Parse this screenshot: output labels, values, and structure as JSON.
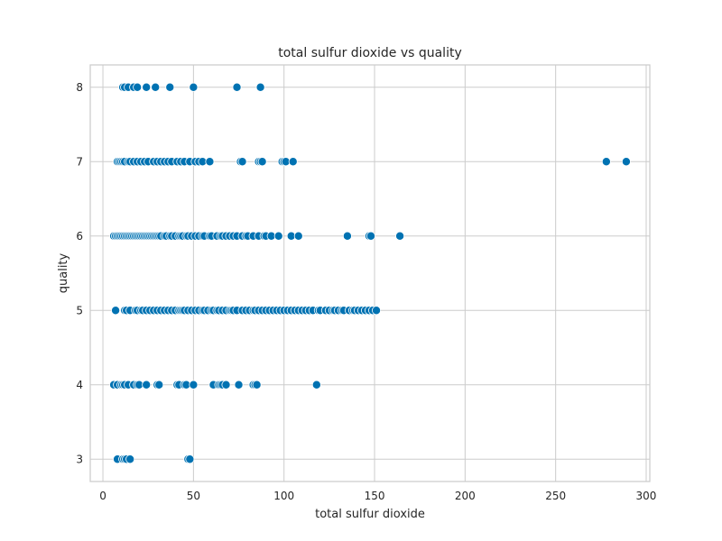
{
  "chart_data": {
    "type": "scatter",
    "title": "total sulfur dioxide vs quality",
    "xlabel": "total sulfur dioxide",
    "ylabel": "quality",
    "xlim": [
      -7,
      302
    ],
    "ylim": [
      2.7,
      8.3
    ],
    "xticks": [
      0,
      50,
      100,
      150,
      200,
      250,
      300
    ],
    "yticks": [
      3,
      4,
      5,
      6,
      7,
      8
    ],
    "grid": true,
    "color": "#0072b2",
    "series": [
      {
        "points": [
          {
            "x": 11,
            "y": 8
          },
          {
            "x": 12,
            "y": 8
          },
          {
            "x": 14,
            "y": 8
          },
          {
            "x": 17,
            "y": 8
          },
          {
            "x": 19,
            "y": 8
          },
          {
            "x": 24,
            "y": 8
          },
          {
            "x": 29,
            "y": 8
          },
          {
            "x": 37,
            "y": 8
          },
          {
            "x": 50,
            "y": 8
          },
          {
            "x": 74,
            "y": 8
          },
          {
            "x": 87,
            "y": 8
          },
          {
            "x": 8,
            "y": 7
          },
          {
            "x": 9,
            "y": 7
          },
          {
            "x": 10,
            "y": 7
          },
          {
            "x": 11,
            "y": 7
          },
          {
            "x": 12,
            "y": 7
          },
          {
            "x": 14,
            "y": 7
          },
          {
            "x": 15,
            "y": 7
          },
          {
            "x": 17,
            "y": 7
          },
          {
            "x": 19,
            "y": 7
          },
          {
            "x": 21,
            "y": 7
          },
          {
            "x": 23,
            "y": 7
          },
          {
            "x": 25,
            "y": 7
          },
          {
            "x": 28,
            "y": 7
          },
          {
            "x": 30,
            "y": 7
          },
          {
            "x": 32,
            "y": 7
          },
          {
            "x": 34,
            "y": 7
          },
          {
            "x": 36,
            "y": 7
          },
          {
            "x": 38,
            "y": 7
          },
          {
            "x": 41,
            "y": 7
          },
          {
            "x": 43,
            "y": 7
          },
          {
            "x": 45,
            "y": 7
          },
          {
            "x": 48,
            "y": 7
          },
          {
            "x": 51,
            "y": 7
          },
          {
            "x": 53,
            "y": 7
          },
          {
            "x": 55,
            "y": 7
          },
          {
            "x": 59,
            "y": 7
          },
          {
            "x": 76,
            "y": 7
          },
          {
            "x": 77,
            "y": 7
          },
          {
            "x": 86,
            "y": 7
          },
          {
            "x": 87,
            "y": 7
          },
          {
            "x": 88,
            "y": 7
          },
          {
            "x": 99,
            "y": 7
          },
          {
            "x": 100,
            "y": 7
          },
          {
            "x": 101,
            "y": 7
          },
          {
            "x": 105,
            "y": 7
          },
          {
            "x": 278,
            "y": 7
          },
          {
            "x": 289,
            "y": 7
          },
          {
            "x": 6,
            "y": 6
          },
          {
            "x": 7,
            "y": 6
          },
          {
            "x": 8,
            "y": 6
          },
          {
            "x": 9,
            "y": 6
          },
          {
            "x": 10,
            "y": 6
          },
          {
            "x": 11,
            "y": 6
          },
          {
            "x": 12,
            "y": 6
          },
          {
            "x": 13,
            "y": 6
          },
          {
            "x": 14,
            "y": 6
          },
          {
            "x": 15,
            "y": 6
          },
          {
            "x": 16,
            "y": 6
          },
          {
            "x": 17,
            "y": 6
          },
          {
            "x": 18,
            "y": 6
          },
          {
            "x": 19,
            "y": 6
          },
          {
            "x": 20,
            "y": 6
          },
          {
            "x": 21,
            "y": 6
          },
          {
            "x": 22,
            "y": 6
          },
          {
            "x": 23,
            "y": 6
          },
          {
            "x": 24,
            "y": 6
          },
          {
            "x": 25,
            "y": 6
          },
          {
            "x": 26,
            "y": 6
          },
          {
            "x": 27,
            "y": 6
          },
          {
            "x": 28,
            "y": 6
          },
          {
            "x": 29,
            "y": 6
          },
          {
            "x": 30,
            "y": 6
          },
          {
            "x": 31,
            "y": 6
          },
          {
            "x": 32,
            "y": 6
          },
          {
            "x": 34,
            "y": 6
          },
          {
            "x": 35,
            "y": 6
          },
          {
            "x": 37,
            "y": 6
          },
          {
            "x": 38,
            "y": 6
          },
          {
            "x": 40,
            "y": 6
          },
          {
            "x": 42,
            "y": 6
          },
          {
            "x": 43,
            "y": 6
          },
          {
            "x": 44,
            "y": 6
          },
          {
            "x": 46,
            "y": 6
          },
          {
            "x": 47,
            "y": 6
          },
          {
            "x": 49,
            "y": 6
          },
          {
            "x": 51,
            "y": 6
          },
          {
            "x": 53,
            "y": 6
          },
          {
            "x": 55,
            "y": 6
          },
          {
            "x": 56,
            "y": 6
          },
          {
            "x": 59,
            "y": 6
          },
          {
            "x": 60,
            "y": 6
          },
          {
            "x": 63,
            "y": 6
          },
          {
            "x": 65,
            "y": 6
          },
          {
            "x": 66,
            "y": 6
          },
          {
            "x": 68,
            "y": 6
          },
          {
            "x": 70,
            "y": 6
          },
          {
            "x": 72,
            "y": 6
          },
          {
            "x": 74,
            "y": 6
          },
          {
            "x": 77,
            "y": 6
          },
          {
            "x": 79,
            "y": 6
          },
          {
            "x": 80,
            "y": 6
          },
          {
            "x": 83,
            "y": 6
          },
          {
            "x": 86,
            "y": 6
          },
          {
            "x": 89,
            "y": 6
          },
          {
            "x": 90,
            "y": 6
          },
          {
            "x": 93,
            "y": 6
          },
          {
            "x": 97,
            "y": 6
          },
          {
            "x": 104,
            "y": 6
          },
          {
            "x": 108,
            "y": 6
          },
          {
            "x": 135,
            "y": 6
          },
          {
            "x": 147,
            "y": 6
          },
          {
            "x": 148,
            "y": 6
          },
          {
            "x": 164,
            "y": 6
          },
          {
            "x": 7,
            "y": 5
          },
          {
            "x": 12,
            "y": 5
          },
          {
            "x": 13,
            "y": 5
          },
          {
            "x": 15,
            "y": 5
          },
          {
            "x": 18,
            "y": 5
          },
          {
            "x": 19,
            "y": 5
          },
          {
            "x": 21,
            "y": 5
          },
          {
            "x": 22,
            "y": 5
          },
          {
            "x": 24,
            "y": 5
          },
          {
            "x": 26,
            "y": 5
          },
          {
            "x": 28,
            "y": 5
          },
          {
            "x": 30,
            "y": 5
          },
          {
            "x": 32,
            "y": 5
          },
          {
            "x": 34,
            "y": 5
          },
          {
            "x": 36,
            "y": 5
          },
          {
            "x": 38,
            "y": 5
          },
          {
            "x": 40,
            "y": 5
          },
          {
            "x": 42,
            "y": 5
          },
          {
            "x": 43,
            "y": 5
          },
          {
            "x": 44,
            "y": 5
          },
          {
            "x": 45,
            "y": 5
          },
          {
            "x": 47,
            "y": 5
          },
          {
            "x": 49,
            "y": 5
          },
          {
            "x": 51,
            "y": 5
          },
          {
            "x": 53,
            "y": 5
          },
          {
            "x": 55,
            "y": 5
          },
          {
            "x": 56,
            "y": 5
          },
          {
            "x": 58,
            "y": 5
          },
          {
            "x": 60,
            "y": 5
          },
          {
            "x": 61,
            "y": 5
          },
          {
            "x": 63,
            "y": 5
          },
          {
            "x": 64,
            "y": 5
          },
          {
            "x": 66,
            "y": 5
          },
          {
            "x": 68,
            "y": 5
          },
          {
            "x": 70,
            "y": 5
          },
          {
            "x": 71,
            "y": 5
          },
          {
            "x": 72,
            "y": 5
          },
          {
            "x": 74,
            "y": 5
          },
          {
            "x": 77,
            "y": 5
          },
          {
            "x": 79,
            "y": 5
          },
          {
            "x": 81,
            "y": 5
          },
          {
            "x": 83,
            "y": 5
          },
          {
            "x": 84,
            "y": 5
          },
          {
            "x": 86,
            "y": 5
          },
          {
            "x": 88,
            "y": 5
          },
          {
            "x": 90,
            "y": 5
          },
          {
            "x": 92,
            "y": 5
          },
          {
            "x": 94,
            "y": 5
          },
          {
            "x": 96,
            "y": 5
          },
          {
            "x": 98,
            "y": 5
          },
          {
            "x": 100,
            "y": 5
          },
          {
            "x": 102,
            "y": 5
          },
          {
            "x": 104,
            "y": 5
          },
          {
            "x": 106,
            "y": 5
          },
          {
            "x": 108,
            "y": 5
          },
          {
            "x": 110,
            "y": 5
          },
          {
            "x": 112,
            "y": 5
          },
          {
            "x": 114,
            "y": 5
          },
          {
            "x": 116,
            "y": 5
          },
          {
            "x": 119,
            "y": 5
          },
          {
            "x": 120,
            "y": 5
          },
          {
            "x": 123,
            "y": 5
          },
          {
            "x": 125,
            "y": 5
          },
          {
            "x": 127,
            "y": 5
          },
          {
            "x": 128,
            "y": 5
          },
          {
            "x": 130,
            "y": 5
          },
          {
            "x": 132,
            "y": 5
          },
          {
            "x": 133,
            "y": 5
          },
          {
            "x": 136,
            "y": 5
          },
          {
            "x": 138,
            "y": 5
          },
          {
            "x": 139,
            "y": 5
          },
          {
            "x": 141,
            "y": 5
          },
          {
            "x": 143,
            "y": 5
          },
          {
            "x": 145,
            "y": 5
          },
          {
            "x": 147,
            "y": 5
          },
          {
            "x": 149,
            "y": 5
          },
          {
            "x": 151,
            "y": 5
          },
          {
            "x": 6,
            "y": 4
          },
          {
            "x": 8,
            "y": 4
          },
          {
            "x": 10,
            "y": 4
          },
          {
            "x": 11,
            "y": 4
          },
          {
            "x": 12,
            "y": 4
          },
          {
            "x": 14,
            "y": 4
          },
          {
            "x": 17,
            "y": 4
          },
          {
            "x": 19,
            "y": 4
          },
          {
            "x": 20,
            "y": 4
          },
          {
            "x": 24,
            "y": 4
          },
          {
            "x": 30,
            "y": 4
          },
          {
            "x": 31,
            "y": 4
          },
          {
            "x": 41,
            "y": 4
          },
          {
            "x": 42,
            "y": 4
          },
          {
            "x": 45,
            "y": 4
          },
          {
            "x": 46,
            "y": 4
          },
          {
            "x": 50,
            "y": 4
          },
          {
            "x": 61,
            "y": 4
          },
          {
            "x": 64,
            "y": 4
          },
          {
            "x": 65,
            "y": 4
          },
          {
            "x": 66,
            "y": 4
          },
          {
            "x": 68,
            "y": 4
          },
          {
            "x": 75,
            "y": 4
          },
          {
            "x": 83,
            "y": 4
          },
          {
            "x": 84,
            "y": 4
          },
          {
            "x": 85,
            "y": 4
          },
          {
            "x": 118,
            "y": 4
          },
          {
            "x": 8,
            "y": 3
          },
          {
            "x": 11,
            "y": 3
          },
          {
            "x": 12,
            "y": 3
          },
          {
            "x": 13,
            "y": 3
          },
          {
            "x": 15,
            "y": 3
          },
          {
            "x": 47,
            "y": 3
          },
          {
            "x": 48,
            "y": 3
          }
        ]
      }
    ]
  }
}
